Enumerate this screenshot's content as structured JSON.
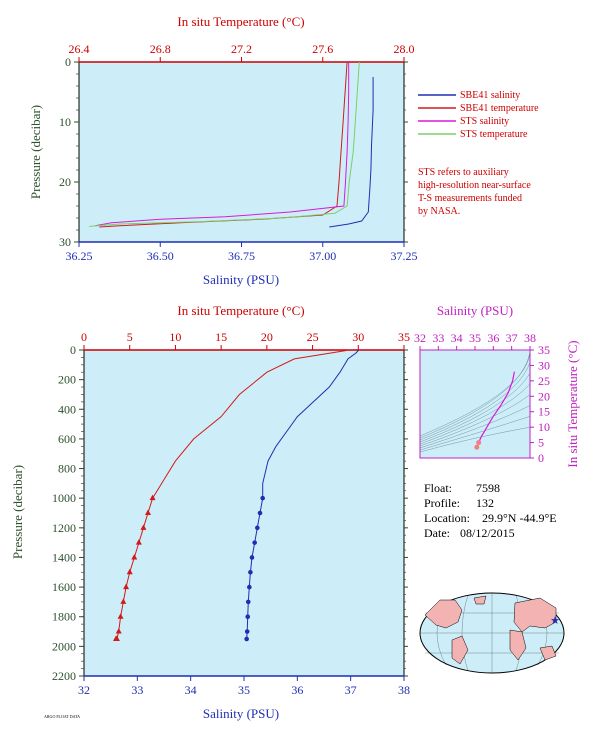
{
  "colors": {
    "plot_bg": "#cdeef8",
    "salinity": "#1f2fb4",
    "temperature": "#d31a1a",
    "sts_salinity": "#d81ad8",
    "sts_temperature": "#7bcf6b",
    "axis_pressure": "#2d4f2d",
    "magenta_axis": "#c020c0",
    "note": "#cc0000"
  },
  "legend": {
    "items": [
      {
        "label": "SBE41 salinity",
        "color": "#1f2fb4"
      },
      {
        "label": "SBE41 temperature",
        "color": "#d31a1a"
      },
      {
        "label": "STS salinity",
        "color": "#d81ad8"
      },
      {
        "label": "STS temperature",
        "color": "#7bcf6b"
      }
    ],
    "note_lines": [
      "STS refers to auxiliary",
      "high-resolution near-surface",
      "T-S measurements funded",
      "by NASA."
    ]
  },
  "info": {
    "float_label": "Float:",
    "float_value": "7598",
    "profile_label": "Profile:",
    "profile_value": "132",
    "location_label": "Location:",
    "location_value": "29.9°N  -44.9°E",
    "date_label": "Date:",
    "date_value": "08/12/2015"
  },
  "footer_text": "ARGO FLOAT DATA",
  "chart_data": [
    {
      "id": "top",
      "type": "line",
      "title": "",
      "top_axis_label": "In situ Temperature (°C)",
      "top_ticks": [
        "26.4",
        "26.8",
        "27.2",
        "27.6",
        "28.0"
      ],
      "xlabel": "Salinity (PSU)",
      "x_ticks": [
        "36.25",
        "36.50",
        "36.75",
        "37.00",
        "37.25"
      ],
      "ylabel": "Pressure (decibar)",
      "y_ticks": [
        "0",
        "10",
        "20",
        "30"
      ],
      "xlim": [
        36.25,
        37.25
      ],
      "templim": [
        26.4,
        28.0
      ],
      "ylim": [
        0,
        30
      ],
      "y_reversed": true,
      "series": [
        {
          "name": "SBE41 salinity",
          "axis": "salinity",
          "color": "#1f2fb4",
          "x": [
            37.155,
            37.155,
            37.15,
            37.148,
            37.145,
            37.14,
            37.12,
            37.08,
            37.02
          ],
          "y": [
            2.5,
            8,
            14,
            18,
            21,
            25,
            26.5,
            27,
            27.5
          ]
        },
        {
          "name": "SBE41 temperature",
          "axis": "temperature",
          "color": "#d31a1a",
          "x": [
            27.72,
            27.71,
            27.7,
            27.69,
            27.68,
            27.67,
            27.6,
            27.3,
            26.9,
            26.6,
            26.5
          ],
          "y": [
            0,
            5,
            10,
            15,
            20,
            24,
            25.5,
            26.2,
            26.8,
            27.3,
            27.5
          ]
        },
        {
          "name": "STS salinity",
          "axis": "salinity",
          "color": "#d81ad8",
          "x": [
            37.08,
            37.08,
            37.078,
            37.075,
            37.07,
            37.065,
            36.9,
            36.7,
            36.5,
            36.35,
            36.3
          ],
          "y": [
            0,
            5,
            10,
            15,
            20,
            24,
            25,
            25.8,
            26.2,
            26.8,
            27.3
          ]
        },
        {
          "name": "STS temperature",
          "axis": "temperature",
          "color": "#7bcf6b",
          "x": [
            27.78,
            27.77,
            27.76,
            27.75,
            27.73,
            27.72,
            27.66,
            27.4,
            27.0,
            26.6,
            26.45
          ],
          "y": [
            0,
            5,
            10,
            15,
            20,
            24,
            25.2,
            26.0,
            26.6,
            27.0,
            27.4
          ]
        }
      ]
    },
    {
      "id": "bottom",
      "type": "line",
      "title": "",
      "top_axis_label": "In situ Temperature (°C)",
      "top_ticks": [
        "0",
        "5",
        "10",
        "15",
        "20",
        "25",
        "30",
        "35"
      ],
      "xlabel": "Salinity (PSU)",
      "x_ticks": [
        "32",
        "33",
        "34",
        "35",
        "36",
        "37",
        "38"
      ],
      "ylabel": "Pressure (decibar)",
      "y_ticks": [
        "0",
        "200",
        "400",
        "600",
        "800",
        "1000",
        "1200",
        "1400",
        "1600",
        "1800",
        "2000",
        "2200"
      ],
      "xlim": [
        32,
        38
      ],
      "templim": [
        0,
        35
      ],
      "ylim": [
        0,
        2200
      ],
      "y_reversed": true,
      "series": [
        {
          "name": "SBE41 salinity",
          "axis": "salinity",
          "color": "#1f2fb4",
          "x": [
            37.15,
            37.1,
            36.95,
            36.8,
            36.6,
            36.3,
            36.0,
            35.8,
            35.6,
            35.45,
            35.35,
            35.35,
            35.3,
            35.25,
            35.2,
            35.15,
            35.12,
            35.1,
            35.08,
            35.07,
            35.06,
            35.05
          ],
          "y": [
            0,
            20,
            60,
            150,
            250,
            350,
            450,
            550,
            650,
            750,
            900,
            1000,
            1100,
            1200,
            1300,
            1400,
            1500,
            1600,
            1700,
            1800,
            1900,
            1950
          ]
        },
        {
          "name": "SBE41 temperature",
          "axis": "temperature",
          "color": "#d31a1a",
          "x": [
            29.0,
            27.0,
            23.0,
            20.0,
            17.0,
            15.0,
            12.0,
            10.0,
            8.5,
            7.5,
            7.0,
            6.5,
            6.0,
            5.5,
            5.0,
            4.6,
            4.3,
            4.0,
            3.8,
            3.6,
            3.5
          ],
          "y": [
            0,
            20,
            60,
            150,
            300,
            450,
            600,
            750,
            900,
            1000,
            1100,
            1200,
            1300,
            1400,
            1500,
            1600,
            1700,
            1800,
            1900,
            1950,
            1950
          ]
        }
      ]
    },
    {
      "id": "ts",
      "type": "line",
      "title": "",
      "xlabel": "Salinity (PSU)",
      "x_ticks": [
        "32",
        "33",
        "34",
        "35",
        "36",
        "37",
        "38"
      ],
      "ylabel": "In situ Temperature (°C)",
      "y_ticks": [
        "0",
        "5",
        "10",
        "15",
        "20",
        "25",
        "30",
        "35"
      ],
      "xlim": [
        32,
        38
      ],
      "ylim": [
        0,
        35
      ],
      "series": [
        {
          "name": "T-S profile",
          "color": "#d81ad8",
          "x": [
            37.15,
            37.05,
            36.8,
            36.4,
            36.0,
            35.7,
            35.5,
            35.35,
            35.2,
            35.1
          ],
          "y": [
            28.0,
            25.0,
            21.0,
            17.0,
            13.5,
            10.5,
            8.5,
            7.0,
            5.0,
            3.5
          ]
        }
      ]
    }
  ]
}
